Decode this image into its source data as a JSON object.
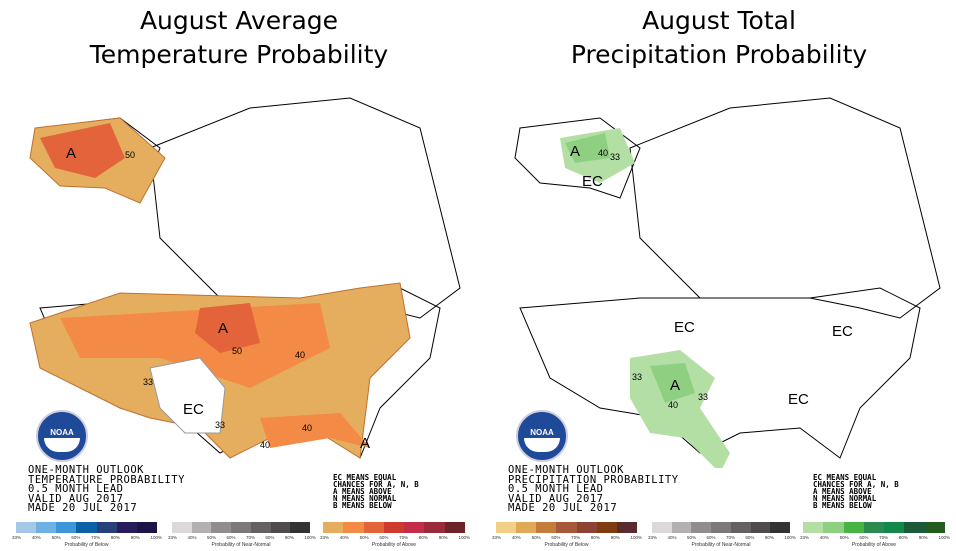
{
  "left": {
    "title_line1": "August Average",
    "title_line2": "Temperature Probability",
    "info": [
      "ONE-MONTH OUTLOOK",
      "TEMPERATURE PROBABILITY",
      "0.5 MONTH LEAD",
      "VALID AUG 2017",
      "MADE 20 JUL 2017"
    ],
    "map_labels": {
      "a_alaska": "A",
      "n50_alaska": "50",
      "a_plains": "A",
      "n50_plains": "50",
      "n40_midwest": "40",
      "n33_sw": "33",
      "ec_tx": "EC",
      "n33_tx": "33",
      "n40_gulf": "40",
      "n40_fl": "40",
      "a_fl": "A"
    },
    "legend_below_colors": [
      "#a6c8e8",
      "#6fb1e3",
      "#3b97d8",
      "#0d5fa8",
      "#27407a",
      "#271b5c",
      "#1a1447"
    ],
    "legend_near_colors": [
      "#dcd8d8",
      "#b4b0b0",
      "#918d8d",
      "#7d797a",
      "#656163",
      "#4f4b4c",
      "#343234"
    ],
    "legend_above_colors": [
      "#e5ae5f",
      "#f38a45",
      "#e3643a",
      "#cf3a30",
      "#c22e47",
      "#9c2a38",
      "#6e2329"
    ]
  },
  "right": {
    "title_line1": "August Total",
    "title_line2": "Precipitation Probability",
    "info": [
      "ONE-MONTH OUTLOOK",
      "PRECIPITATION PROBABILITY",
      "0.5 MONTH LEAD",
      "VALID AUG 2017",
      "MADE 20 JUL 2017"
    ],
    "map_labels": {
      "a_alaska": "A",
      "n40_alaska": "40",
      "n33_alaska": "33",
      "ec_canada": "EC",
      "ec_north": "EC",
      "ec_east": "EC",
      "n33_sw": "33",
      "a_sw": "A",
      "n40_sw": "40",
      "n33_sw2": "33",
      "ec_se": "EC"
    },
    "legend_below_colors": [
      "#f1cf87",
      "#e0a957",
      "#c57b3e",
      "#a65939",
      "#8e4233",
      "#7e3d10",
      "#5a2a2e"
    ],
    "legend_near_colors": [
      "#dcd8d8",
      "#b4b0b0",
      "#918d8d",
      "#7d797a",
      "#656163",
      "#4f4b4c",
      "#343234"
    ],
    "legend_above_colors": [
      "#b3dfa5",
      "#8fcf81",
      "#46b442",
      "#2c8a50",
      "#12894a",
      "#1c5b3a",
      "#255d1f"
    ]
  },
  "key_text": [
    "EC MEANS EQUAL",
    "CHANCES FOR A, N, B",
    "A MEANS ABOVE",
    "N MEANS NORMAL",
    "B MEANS BELOW"
  ],
  "ticks": [
    "33%",
    "40%",
    "50%",
    "60%",
    "70%",
    "80%",
    "90%",
    "100%"
  ],
  "captions": {
    "below": "Probability of Below",
    "near": "Probability of Near-Normal",
    "above": "Probability of Above"
  },
  "logo_text": "NOAA"
}
